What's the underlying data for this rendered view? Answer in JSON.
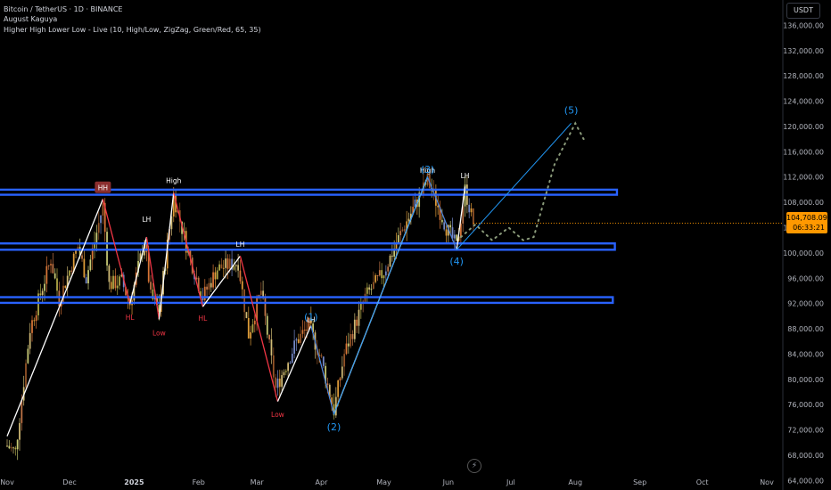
{
  "header": {
    "symbol": "Bitcoin / TetherUS · 1D · BINANCE",
    "author": "August Kaguya",
    "indicator": "Higher High Lower Low - Live (10, High/Low, ZigZag, Green/Red, 65, 35)"
  },
  "currency_label": "USDT",
  "price_tag": {
    "value": "104,708.09",
    "countdown": "06:33:21"
  },
  "icons": {
    "bolt": "lightning-bolt-icon"
  },
  "colors": {
    "background": "#000000",
    "zone": "#2962ff",
    "zigzag_white": "#ffffff",
    "zigzag_red": "#f23645",
    "wave_blue": "#2196f3",
    "projection": "#8a9a7a",
    "label_red": "#f23645",
    "label_white": "#ffffff",
    "hh_badge": "#8b2e2e",
    "price_tag": "#ff9800",
    "axis_text": "#b2b5be"
  },
  "chart_data": {
    "type": "candlestick",
    "title": "Bitcoin / TetherUS · 1D · BINANCE",
    "xlabel": "",
    "ylabel": "",
    "x_ticks": [
      "Nov",
      "Dec",
      "2025",
      "Feb",
      "Mar",
      "Apr",
      "May",
      "Jun",
      "Jul",
      "Aug",
      "Sep",
      "Oct",
      "Nov"
    ],
    "x_tick_dates": [
      "2024-11-01",
      "2024-12-01",
      "2025-01-01",
      "2025-02-01",
      "2025-03-01",
      "2025-04-01",
      "2025-05-01",
      "2025-06-01",
      "2025-07-01",
      "2025-08-01",
      "2025-09-01",
      "2025-10-01",
      "2025-11-01"
    ],
    "y_ticks": [
      "136,000.00",
      "132,000.00",
      "128,000.00",
      "124,000.00",
      "120,000.00",
      "116,000.00",
      "112,000.00",
      "108,000.00",
      "104,000.00",
      "100,000.00",
      "96,000.00",
      "92,000.00",
      "88,000.00",
      "84,000.00",
      "80,000.00",
      "76,000.00",
      "72,000.00",
      "68,000.00",
      "64,000.00"
    ],
    "ylim": [
      62500,
      140000
    ],
    "last_price": 104708.09,
    "zones": [
      {
        "low": 109200,
        "high": 110000,
        "end": "2025-08-21"
      },
      {
        "low": 100500,
        "high": 101500,
        "end": "2025-08-20"
      },
      {
        "low": 92100,
        "high": 93000,
        "end": "2025-08-19"
      }
    ],
    "price_path": [
      [
        "2024-11-01",
        69500
      ],
      [
        "2024-11-05",
        68500
      ],
      [
        "2024-11-12",
        88000
      ],
      [
        "2024-11-22",
        99000
      ],
      [
        "2024-11-26",
        92500
      ],
      [
        "2024-12-05",
        101000
      ],
      [
        "2024-12-09",
        96000
      ],
      [
        "2024-12-17",
        107500
      ],
      [
        "2024-12-20",
        95000
      ],
      [
        "2024-12-26",
        95500
      ],
      [
        "2024-12-30",
        92000
      ],
      [
        "2025-01-06",
        102000
      ],
      [
        "2025-01-09",
        93000
      ],
      [
        "2025-01-13",
        91000
      ],
      [
        "2025-01-20",
        109000
      ],
      [
        "2025-01-27",
        100000
      ],
      [
        "2025-02-03",
        93000
      ],
      [
        "2025-02-10",
        97500
      ],
      [
        "2025-02-20",
        98500
      ],
      [
        "2025-02-25",
        87000
      ],
      [
        "2025-03-03",
        94000
      ],
      [
        "2025-03-10",
        78500
      ],
      [
        "2025-03-20",
        86000
      ],
      [
        "2025-03-26",
        88500
      ],
      [
        "2025-04-01",
        83000
      ],
      [
        "2025-04-07",
        75000
      ],
      [
        "2025-04-12",
        84000
      ],
      [
        "2025-04-22",
        93000
      ],
      [
        "2025-05-01",
        97000
      ],
      [
        "2025-05-09",
        103000
      ],
      [
        "2025-05-22",
        111500
      ],
      [
        "2025-05-31",
        104000
      ],
      [
        "2025-06-05",
        101000
      ],
      [
        "2025-06-09",
        110000
      ],
      [
        "2025-06-13",
        104700
      ]
    ],
    "zigzag": [
      {
        "points": [
          [
            "2024-11-01",
            71000
          ],
          [
            "2024-12-17",
            108500
          ]
        ],
        "color": "white"
      },
      {
        "points": [
          [
            "2024-12-17",
            108500
          ],
          [
            "2024-12-30",
            92000
          ]
        ],
        "color": "red"
      },
      {
        "points": [
          [
            "2024-12-30",
            92000
          ],
          [
            "2025-01-07",
            102500
          ]
        ],
        "color": "white"
      },
      {
        "points": [
          [
            "2025-01-07",
            102500
          ],
          [
            "2025-01-13",
            89500
          ]
        ],
        "color": "red"
      },
      {
        "points": [
          [
            "2025-01-13",
            89500
          ],
          [
            "2025-01-20",
            109500
          ]
        ],
        "color": "white"
      },
      {
        "points": [
          [
            "2025-01-20",
            109500
          ],
          [
            "2025-02-03",
            91500
          ]
        ],
        "color": "red"
      },
      {
        "points": [
          [
            "2025-02-03",
            91500
          ],
          [
            "2025-02-21",
            99500
          ]
        ],
        "color": "white"
      },
      {
        "points": [
          [
            "2025-02-21",
            99500
          ],
          [
            "2025-03-11",
            76500
          ]
        ],
        "color": "red"
      },
      {
        "points": [
          [
            "2025-03-11",
            76500
          ],
          [
            "2025-03-27",
            88500
          ]
        ],
        "color": "white"
      },
      {
        "points": [
          [
            "2025-03-27",
            88500
          ],
          [
            "2025-04-07",
            74500
          ]
        ],
        "color": "red"
      },
      {
        "points": [
          [
            "2025-04-07",
            74500
          ],
          [
            "2025-05-22",
            112000
          ]
        ],
        "color": "white"
      },
      {
        "points": [
          [
            "2025-05-22",
            112000
          ],
          [
            "2025-06-05",
            100500
          ]
        ],
        "color": "red"
      },
      {
        "points": [
          [
            "2025-06-05",
            100500
          ],
          [
            "2025-06-09",
            110500
          ]
        ],
        "color": "white"
      }
    ],
    "wave_lines": [
      [
        [
          "2025-03-27",
          88500
        ],
        [
          "2025-04-07",
          74500
        ],
        [
          "2025-05-22",
          112000
        ],
        [
          "2025-06-05",
          100500
        ],
        [
          "2025-07-30",
          120500
        ]
      ]
    ],
    "projection_path": [
      [
        "2025-06-07",
        102500
      ],
      [
        "2025-06-14",
        104500
      ],
      [
        "2025-06-22",
        102000
      ],
      [
        "2025-06-30",
        104000
      ],
      [
        "2025-07-07",
        102000
      ],
      [
        "2025-07-12",
        102500
      ],
      [
        "2025-07-22",
        114000
      ],
      [
        "2025-08-01",
        120500
      ],
      [
        "2025-08-05",
        118000
      ]
    ],
    "labels": [
      {
        "text": "HH",
        "date": "2024-12-17",
        "price": 110300,
        "color": "white",
        "badge": true
      },
      {
        "text": "LH",
        "date": "2025-01-07",
        "price": 105300,
        "color": "white"
      },
      {
        "text": "High",
        "date": "2025-01-20",
        "price": 111400,
        "color": "white"
      },
      {
        "text": "LH",
        "date": "2025-02-21",
        "price": 101300,
        "color": "white"
      },
      {
        "text": "HL",
        "date": "2024-12-30",
        "price": 89800,
        "color": "red"
      },
      {
        "text": "Low",
        "date": "2025-01-13",
        "price": 87300,
        "color": "red"
      },
      {
        "text": "HL",
        "date": "2025-02-03",
        "price": 89600,
        "color": "red"
      },
      {
        "text": "Low",
        "date": "2025-03-11",
        "price": 74400,
        "color": "red"
      },
      {
        "text": "LH",
        "date": "2025-03-27",
        "price": 89400,
        "color": "white"
      },
      {
        "text": "High",
        "date": "2025-05-22",
        "price": 113000,
        "color": "white"
      },
      {
        "text": "LH",
        "date": "2025-06-09",
        "price": 112200,
        "color": "white"
      },
      {
        "text": "(1)",
        "date": "2025-03-27",
        "price": 89900,
        "color": "blue"
      },
      {
        "text": "(2)",
        "date": "2025-04-07",
        "price": 72500,
        "color": "blue"
      },
      {
        "text": "(3)",
        "date": "2025-05-22",
        "price": 113200,
        "color": "blue"
      },
      {
        "text": "(4)",
        "date": "2025-06-05",
        "price": 98700,
        "color": "blue"
      },
      {
        "text": "(5)",
        "date": "2025-07-30",
        "price": 122600,
        "color": "blue"
      }
    ],
    "legend": "none",
    "grid": false
  }
}
